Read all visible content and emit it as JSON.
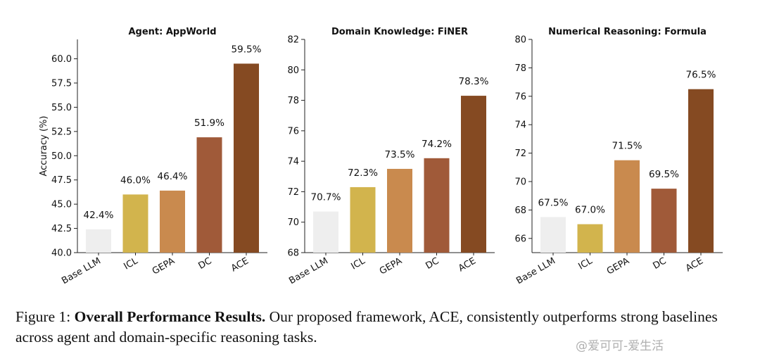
{
  "chart_data": [
    {
      "type": "bar",
      "title": "Agent: AppWorld",
      "ylabel": "Accuracy (%)",
      "categories": [
        "Base LLM",
        "ICL",
        "GEPA",
        "DC",
        "ACE"
      ],
      "values": [
        42.4,
        46.0,
        46.4,
        51.9,
        59.5
      ],
      "value_labels": [
        "42.4%",
        "46.0%",
        "46.4%",
        "51.9%",
        "59.5%"
      ],
      "ylim": [
        40,
        62
      ],
      "yticks": [
        40.0,
        42.5,
        45.0,
        47.5,
        50.0,
        52.5,
        55.0,
        57.5,
        60.0
      ],
      "ytick_labels": [
        "40.0",
        "42.5",
        "45.0",
        "47.5",
        "50.0",
        "52.5",
        "55.0",
        "57.5",
        "60.0"
      ],
      "grid": false
    },
    {
      "type": "bar",
      "title": "Domain Knowledge: FiNER",
      "ylabel": "",
      "categories": [
        "Base LLM",
        "ICL",
        "GEPA",
        "DC",
        "ACE"
      ],
      "values": [
        70.7,
        72.3,
        73.5,
        74.2,
        78.3
      ],
      "value_labels": [
        "70.7%",
        "72.3%",
        "73.5%",
        "74.2%",
        "78.3%"
      ],
      "ylim": [
        68,
        82
      ],
      "yticks": [
        68,
        70,
        72,
        74,
        76,
        78,
        80,
        82
      ],
      "ytick_labels": [
        "68",
        "70",
        "72",
        "74",
        "76",
        "78",
        "80",
        "82"
      ],
      "grid": false
    },
    {
      "type": "bar",
      "title": "Numerical Reasoning: Formula",
      "ylabel": "",
      "categories": [
        "Base LLM",
        "ICL",
        "GEPA",
        "DC",
        "ACE"
      ],
      "values": [
        67.5,
        67.0,
        71.5,
        69.5,
        76.5
      ],
      "value_labels": [
        "67.5%",
        "67.0%",
        "71.5%",
        "69.5%",
        "76.5%"
      ],
      "ylim": [
        65,
        80
      ],
      "yticks": [
        66,
        68,
        70,
        72,
        74,
        76,
        78,
        80
      ],
      "ytick_labels": [
        "66",
        "68",
        "70",
        "72",
        "74",
        "76",
        "78",
        "80"
      ],
      "grid": false
    }
  ],
  "colors": {
    "bars": [
      "#eeeeee",
      "#d2b44d",
      "#c98a4e",
      "#a05a39",
      "#854a22"
    ],
    "axis": "#222222"
  },
  "caption": {
    "label": "Figure 1:",
    "bold": "Overall Performance Results.",
    "text": "Our proposed framework, ACE, consistently outperforms strong baselines across agent and domain-specific reasoning tasks."
  },
  "watermark": "@爱可可-爱生活"
}
